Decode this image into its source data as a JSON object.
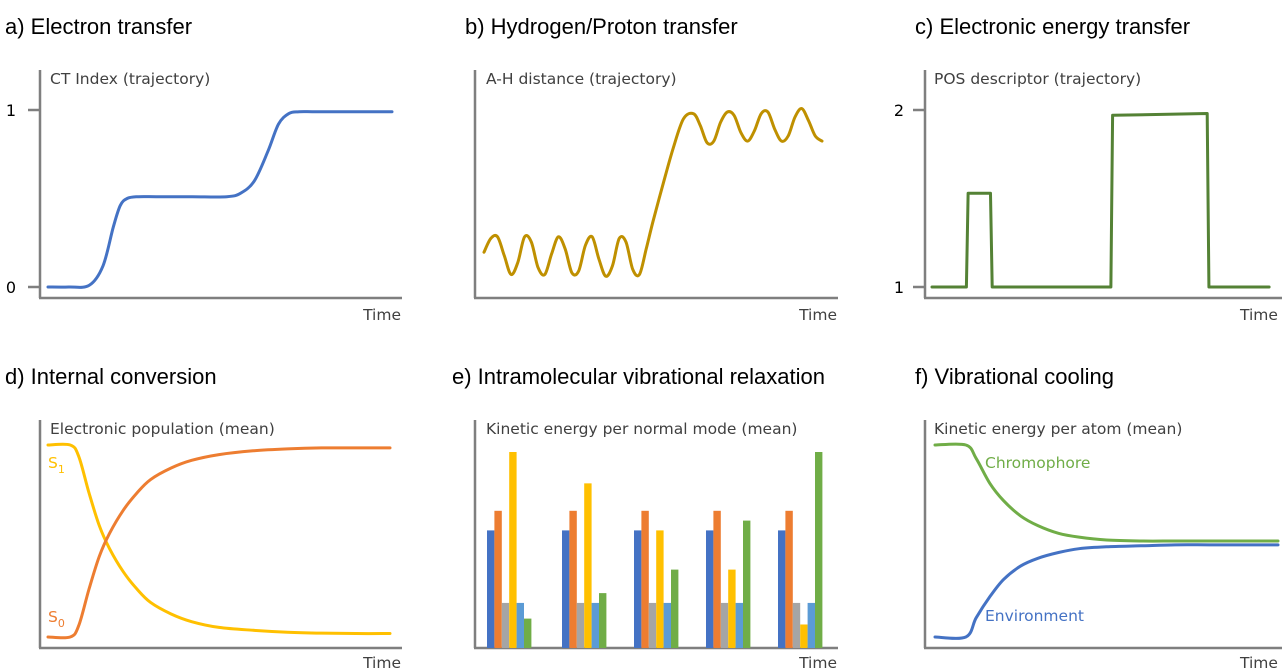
{
  "chart_data": [
    {
      "type": "line",
      "title": "a) Electron transfer",
      "ylabel": "CT Index (trajectory)",
      "xlabel": "Time",
      "yticks": [
        "0",
        "1"
      ],
      "ylim": [
        0,
        1
      ],
      "xlim": [
        0,
        1
      ],
      "series": [
        {
          "color": "#4472c4",
          "x": [
            0.0,
            0.06,
            0.12,
            0.16,
            0.19,
            0.21,
            0.23,
            0.26,
            0.32,
            0.42,
            0.52,
            0.56,
            0.6,
            0.64,
            0.67,
            0.7,
            0.73,
            0.78,
            0.9,
            1.0
          ],
          "y": [
            0.0,
            0.0,
            0.01,
            0.12,
            0.34,
            0.46,
            0.5,
            0.51,
            0.51,
            0.51,
            0.51,
            0.53,
            0.6,
            0.77,
            0.92,
            0.98,
            0.99,
            0.99,
            0.99,
            0.99
          ]
        }
      ]
    },
    {
      "type": "line",
      "title": "b) Hydrogen/Proton transfer",
      "ylabel": "A-H distance (trajectory)",
      "xlabel": "Time",
      "ylim": [
        0,
        1
      ],
      "xlim": [
        0,
        1
      ],
      "series": [
        {
          "color": "#bf9000",
          "x": [
            0.0,
            0.02,
            0.04,
            0.06,
            0.08,
            0.1,
            0.12,
            0.14,
            0.16,
            0.18,
            0.2,
            0.22,
            0.24,
            0.26,
            0.28,
            0.3,
            0.32,
            0.34,
            0.36,
            0.38,
            0.4,
            0.42,
            0.44,
            0.46,
            0.48,
            0.5,
            0.53,
            0.56,
            0.59,
            0.62,
            0.64,
            0.66,
            0.68,
            0.7,
            0.72,
            0.74,
            0.76,
            0.78,
            0.8,
            0.82,
            0.84,
            0.86,
            0.88,
            0.9,
            0.92,
            0.94,
            0.96,
            0.98,
            1.0
          ],
          "y": [
            0.18,
            0.26,
            0.27,
            0.16,
            0.05,
            0.12,
            0.27,
            0.24,
            0.09,
            0.05,
            0.17,
            0.27,
            0.2,
            0.06,
            0.07,
            0.22,
            0.27,
            0.14,
            0.04,
            0.1,
            0.26,
            0.24,
            0.08,
            0.05,
            0.2,
            0.36,
            0.58,
            0.79,
            0.96,
            0.99,
            0.92,
            0.82,
            0.83,
            0.94,
            1.0,
            0.98,
            0.88,
            0.83,
            0.89,
            0.99,
            1.0,
            0.9,
            0.83,
            0.86,
            0.97,
            1.02,
            0.95,
            0.86,
            0.83
          ]
        }
      ]
    },
    {
      "type": "line",
      "title": "c) Electronic energy transfer",
      "ylabel": "POS descriptor (trajectory)",
      "xlabel": "Time",
      "yticks": [
        "1",
        "2"
      ],
      "ylim": [
        1,
        2
      ],
      "xlim": [
        0,
        1
      ],
      "series": [
        {
          "color": "#548235",
          "x": [
            0.0,
            0.1,
            0.105,
            0.17,
            0.175,
            0.52,
            0.525,
            0.8,
            0.805,
            0.98
          ],
          "y": [
            1.0,
            1.0,
            1.53,
            1.53,
            1.0,
            1.0,
            1.97,
            1.98,
            1.0,
            1.0
          ]
        }
      ]
    },
    {
      "type": "line",
      "title": "d) Internal conversion",
      "ylabel": "Electronic population (mean)",
      "xlabel": "Time",
      "ylim": [
        0,
        1
      ],
      "xlim": [
        0,
        1
      ],
      "annotations": [
        {
          "base": "S",
          "sub": "1",
          "color": "#ffc000"
        },
        {
          "base": "S",
          "sub": "0",
          "color": "#ed7d31"
        }
      ],
      "series": [
        {
          "name": "S1",
          "color": "#ffc000",
          "x": [
            0.0,
            0.065,
            0.09,
            0.12,
            0.15,
            0.18,
            0.22,
            0.26,
            0.3,
            0.36,
            0.42,
            0.5,
            0.6,
            0.7,
            0.8,
            0.9,
            1.0
          ],
          "y": [
            1.0,
            1.0,
            0.94,
            0.75,
            0.58,
            0.46,
            0.34,
            0.25,
            0.18,
            0.12,
            0.08,
            0.05,
            0.035,
            0.025,
            0.02,
            0.018,
            0.018
          ]
        },
        {
          "name": "S0",
          "color": "#ed7d31",
          "x": [
            0.0,
            0.065,
            0.09,
            0.12,
            0.15,
            0.18,
            0.22,
            0.26,
            0.3,
            0.36,
            0.42,
            0.5,
            0.6,
            0.7,
            0.8,
            0.9,
            1.0
          ],
          "y": [
            0.0,
            0.0,
            0.06,
            0.25,
            0.42,
            0.54,
            0.66,
            0.75,
            0.82,
            0.88,
            0.92,
            0.95,
            0.97,
            0.98,
            0.985,
            0.985,
            0.985
          ]
        }
      ]
    },
    {
      "type": "bar",
      "title": "e) Intramolecular vibrational relaxation",
      "ylabel": "Kinetic energy per normal mode (mean)",
      "xlabel": "Time",
      "ylim": [
        0,
        1
      ],
      "groups": 5,
      "series": [
        {
          "color": "#4472c4",
          "values": [
            0.6,
            0.6,
            0.6,
            0.6,
            0.6
          ]
        },
        {
          "color": "#ed7d31",
          "values": [
            0.7,
            0.7,
            0.7,
            0.7,
            0.7
          ]
        },
        {
          "color": "#a5a5a5",
          "values": [
            0.23,
            0.23,
            0.23,
            0.23,
            0.23
          ]
        },
        {
          "color": "#ffc000",
          "values": [
            1.0,
            0.84,
            0.6,
            0.4,
            0.12
          ]
        },
        {
          "color": "#5b9bd5",
          "values": [
            0.23,
            0.23,
            0.23,
            0.23,
            0.23
          ]
        },
        {
          "color": "#70ad47",
          "values": [
            0.15,
            0.28,
            0.4,
            0.65,
            1.0
          ]
        }
      ]
    },
    {
      "type": "line",
      "title": "f) Vibrational cooling",
      "ylabel": "Kinetic energy per atom (mean)",
      "xlabel": "Time",
      "ylim": [
        0,
        1
      ],
      "xlim": [
        0,
        1
      ],
      "series": [
        {
          "name": "Chromophore",
          "color": "#70ad47",
          "x": [
            0.0,
            0.09,
            0.12,
            0.16,
            0.2,
            0.25,
            0.3,
            0.36,
            0.42,
            0.5,
            0.6,
            0.7,
            0.8,
            0.9,
            1.0
          ],
          "y": [
            1.0,
            1.0,
            0.93,
            0.8,
            0.71,
            0.63,
            0.58,
            0.54,
            0.52,
            0.505,
            0.5,
            0.5,
            0.5,
            0.5,
            0.5
          ]
        },
        {
          "name": "Environment",
          "color": "#4472c4",
          "x": [
            0.0,
            0.09,
            0.12,
            0.16,
            0.2,
            0.25,
            0.3,
            0.36,
            0.42,
            0.5,
            0.6,
            0.7,
            0.8,
            0.9,
            1.0
          ],
          "y": [
            0.0,
            0.0,
            0.1,
            0.21,
            0.3,
            0.37,
            0.41,
            0.44,
            0.46,
            0.47,
            0.475,
            0.48,
            0.48,
            0.48,
            0.48
          ]
        }
      ]
    }
  ]
}
